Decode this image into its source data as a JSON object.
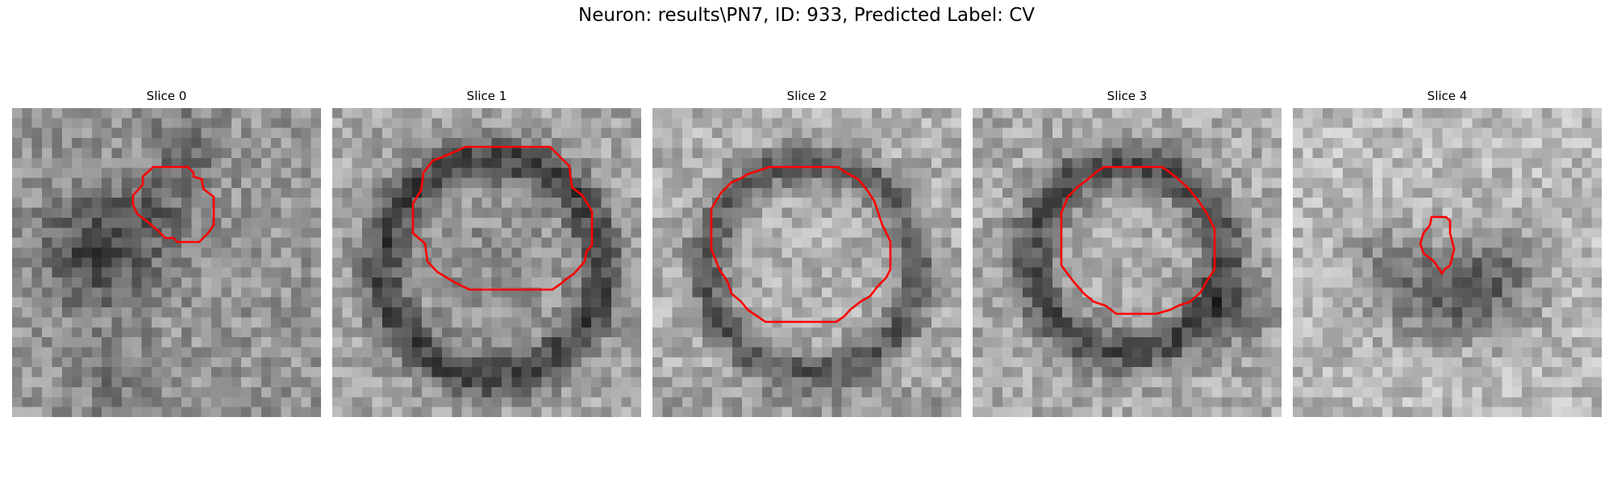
{
  "title": "Neuron: results\\PN7, ID: 933, Predicted Label: CV",
  "panels": [
    {
      "title": "Slice 0"
    },
    {
      "title": "Slice 1"
    },
    {
      "title": "Slice 2"
    },
    {
      "title": "Slice 3"
    },
    {
      "title": "Slice 4"
    }
  ],
  "colors": {
    "contour": "#ff0000",
    "colormap": "grayscale"
  }
}
